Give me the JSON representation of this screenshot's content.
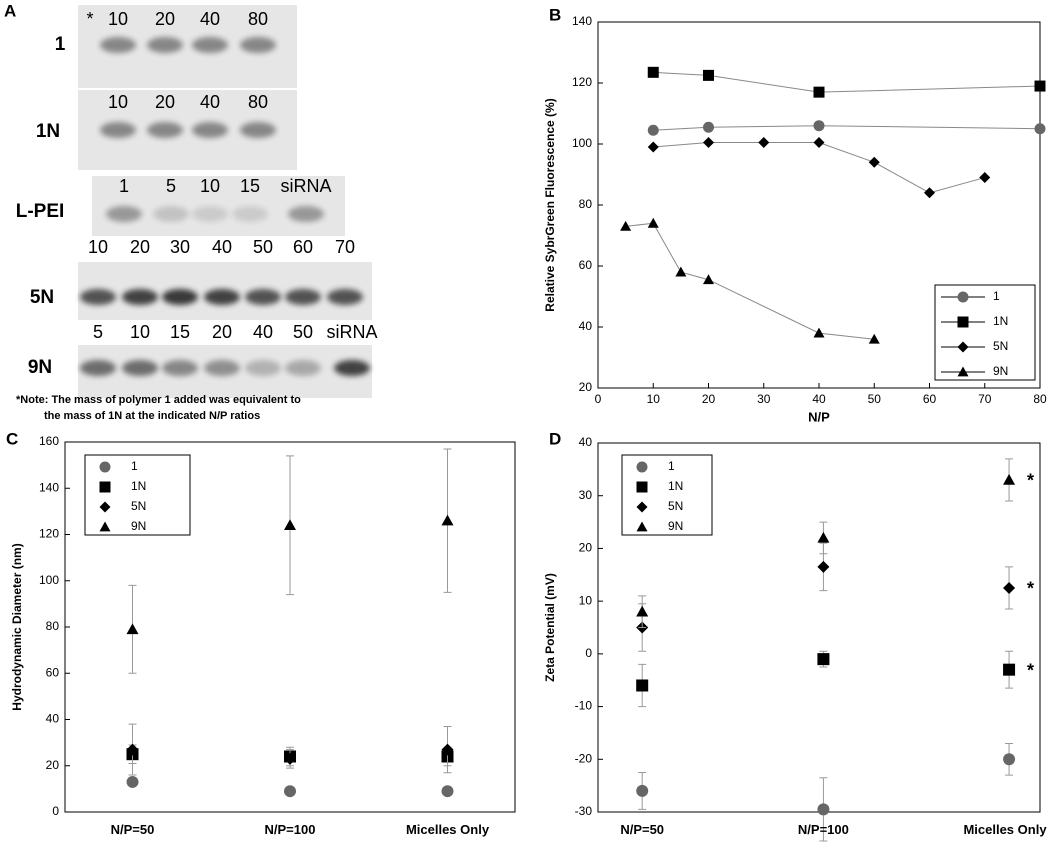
{
  "gel_panel": {
    "label": "A",
    "rows": [
      {
        "name": "1",
        "lanes": [
          "*",
          "10",
          "20",
          "40",
          "80"
        ]
      },
      {
        "name": "1N",
        "lanes": [
          "10",
          "20",
          "40",
          "80"
        ]
      },
      {
        "name": "L-PEI",
        "lanes": [
          "1",
          "5",
          "10",
          "15",
          "siRNA"
        ]
      },
      {
        "name": "5N",
        "lanes": [
          "10",
          "20",
          "30",
          "40",
          "50",
          "60",
          "70"
        ]
      },
      {
        "name": "9N",
        "lanes": [
          "5",
          "10",
          "15",
          "20",
          "40",
          "50",
          "siRNA"
        ]
      }
    ],
    "note": [
      "*Note:  The mass of polymer 1 added was equivalent to",
      "the mass of 1N at the indicated N/P ratios"
    ]
  },
  "chart_data": [
    {
      "type": "line",
      "panel": "B",
      "x_label": "N/P",
      "y_label": "Relative SybrGreen Fluorescence (%)",
      "xlim": [
        0,
        80
      ],
      "xticks": [
        0,
        10,
        20,
        30,
        40,
        50,
        60,
        70,
        80
      ],
      "ylim": [
        20,
        140
      ],
      "yticks": [
        20,
        40,
        60,
        80,
        100,
        120,
        140
      ],
      "grid": false,
      "legend": "lower right",
      "series": [
        {
          "name": "1",
          "color": "#666666",
          "marker": "circle",
          "x": [
            10,
            20,
            40,
            80
          ],
          "values": [
            104.5,
            105.5,
            106,
            105
          ]
        },
        {
          "name": "1N",
          "color": "#000000",
          "marker": "square",
          "x": [
            10,
            20,
            40,
            80
          ],
          "values": [
            123.5,
            122.5,
            117,
            119
          ]
        },
        {
          "name": "5N",
          "color": "#000000",
          "marker": "diamond",
          "x": [
            10,
            20,
            30,
            40,
            50,
            60,
            70
          ],
          "values": [
            99,
            100.5,
            100.5,
            100.5,
            94,
            84,
            89
          ]
        },
        {
          "name": "9N",
          "color": "#000000",
          "marker": "triangle",
          "x": [
            5,
            10,
            15,
            20,
            40,
            50
          ],
          "values": [
            73,
            74,
            58,
            55.5,
            38,
            36
          ]
        }
      ]
    },
    {
      "type": "errorbar",
      "panel": "C",
      "y_label": "Hydrodynamic Diameter (nm)",
      "categories": [
        "N/P=50",
        "N/P=100",
        "Micelles Only"
      ],
      "ylim": [
        0,
        160
      ],
      "yticks": [
        0,
        20,
        40,
        60,
        80,
        100,
        120,
        140,
        160
      ],
      "grid": false,
      "legend": "upper left",
      "series": [
        {
          "name": "1",
          "color": "#666666",
          "marker": "circle",
          "values": [
            13,
            9,
            9
          ],
          "errors": [
            1,
            1,
            1
          ]
        },
        {
          "name": "1N",
          "color": "#000000",
          "marker": "square",
          "values": [
            25,
            24,
            24
          ],
          "errors": [
            4,
            4,
            4
          ]
        },
        {
          "name": "5N",
          "color": "#000000",
          "marker": "diamond",
          "values": [
            27,
            23,
            27
          ],
          "errors": [
            11,
            4,
            10
          ]
        },
        {
          "name": "9N",
          "color": "#000000",
          "marker": "triangle",
          "values": [
            79,
            124,
            126
          ],
          "errors": [
            19,
            30,
            31
          ]
        }
      ]
    },
    {
      "type": "errorbar",
      "panel": "D",
      "y_label": "Zeta Potential (mV)",
      "categories": [
        "N/P=50",
        "N/P=100",
        "Micelles Only"
      ],
      "ylim": [
        -30,
        40
      ],
      "yticks": [
        -30,
        -20,
        -10,
        0,
        10,
        20,
        30,
        40
      ],
      "grid": false,
      "legend": "upper left",
      "series": [
        {
          "name": "1",
          "color": "#666666",
          "marker": "circle",
          "values": [
            -26,
            -29.5,
            -20
          ],
          "errors": [
            3.5,
            6,
            3
          ]
        },
        {
          "name": "1N",
          "color": "#000000",
          "marker": "square",
          "values": [
            -6,
            -1,
            -3
          ],
          "errors": [
            4,
            1.5,
            3.5
          ],
          "note": "*"
        },
        {
          "name": "5N",
          "color": "#000000",
          "marker": "diamond",
          "values": [
            5,
            16.5,
            12.5
          ],
          "errors": [
            4.5,
            4.5,
            4
          ],
          "note": "*"
        },
        {
          "name": "9N",
          "color": "#000000",
          "marker": "triangle",
          "values": [
            8,
            22,
            33
          ],
          "errors": [
            3,
            3,
            4
          ],
          "note": "*"
        }
      ]
    }
  ]
}
